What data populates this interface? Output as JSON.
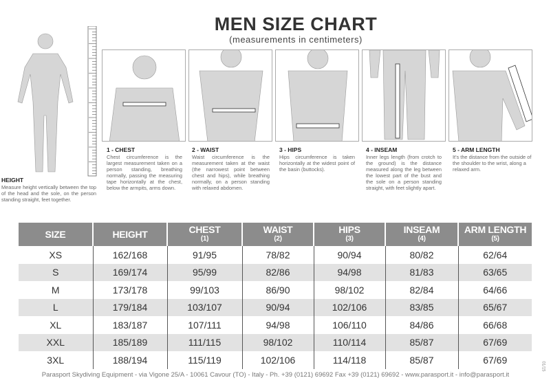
{
  "header": {
    "title": "MEN SIZE CHART",
    "subtitle": "(measurements in centimeters)"
  },
  "descriptions": [
    {
      "title": "HEIGHT",
      "text": "Measure height vertically between the top of the head and the sole, on the person standing straight, feet together."
    },
    {
      "title": "1 - CHEST",
      "text": "Chest circumference is the largest measurement taken on a person standing, breathing normally, passing the measuring tape horizontally at the chest, below the armpits, arms down."
    },
    {
      "title": "2 - WAIST",
      "text": "Waist circumference is the measurement taken at the waist (the narrowest point between chest and hips), while breathing normally, on a person standing with relaxed abdomen."
    },
    {
      "title": "3 - HIPS",
      "text": "Hips circumference is taken horizontally at the widest point of the basin (buttocks)."
    },
    {
      "title": "4 - INSEAM",
      "text": "Inner legs length (from crotch to the ground) is the distance measured along the leg between the lowest part of the bust and the sole on a person standing straight, with feet slightly apart."
    },
    {
      "title": "5 - ARM LENGTH",
      "text": "It's the distance from the outside of the shoulder to the wrist, along a relaxed arm."
    }
  ],
  "table": {
    "headers": [
      {
        "label": "SIZE",
        "sub": ""
      },
      {
        "label": "HEIGHT",
        "sub": ""
      },
      {
        "label": "CHEST",
        "sub": "(1)"
      },
      {
        "label": "WAIST",
        "sub": "(2)"
      },
      {
        "label": "HIPS",
        "sub": "(3)"
      },
      {
        "label": "INSEAM",
        "sub": "(4)"
      },
      {
        "label": "ARM LENGTH",
        "sub": "(5)"
      }
    ],
    "rows": [
      [
        "XS",
        "162/168",
        "91/95",
        "78/82",
        "90/94",
        "80/82",
        "62/64"
      ],
      [
        "S",
        "169/174",
        "95/99",
        "82/86",
        "94/98",
        "81/83",
        "63/65"
      ],
      [
        "M",
        "173/178",
        "99/103",
        "86/90",
        "98/102",
        "82/84",
        "64/66"
      ],
      [
        "L",
        "179/184",
        "103/107",
        "90/94",
        "102/106",
        "83/85",
        "65/67"
      ],
      [
        "XL",
        "183/187",
        "107/111",
        "94/98",
        "106/110",
        "84/86",
        "66/68"
      ],
      [
        "XXL",
        "185/189",
        "111/115",
        "98/102",
        "110/114",
        "85/87",
        "67/69"
      ],
      [
        "3XL",
        "188/194",
        "115/119",
        "102/106",
        "114/118",
        "85/87",
        "67/69"
      ]
    ]
  },
  "footer": "Parasport Skydiving Equipment - via Vigone 25/A - 10061 Cavour (TO) - Italy - Ph. +39 (0121) 69692 Fax +39 (0121) 69692 - www.parasport.it - info@parasport.it",
  "code": "01/15",
  "colors": {
    "header_bg": "#8c8c8c",
    "alt_row": "#e2e2e2",
    "figure": "#d6d6d6"
  }
}
